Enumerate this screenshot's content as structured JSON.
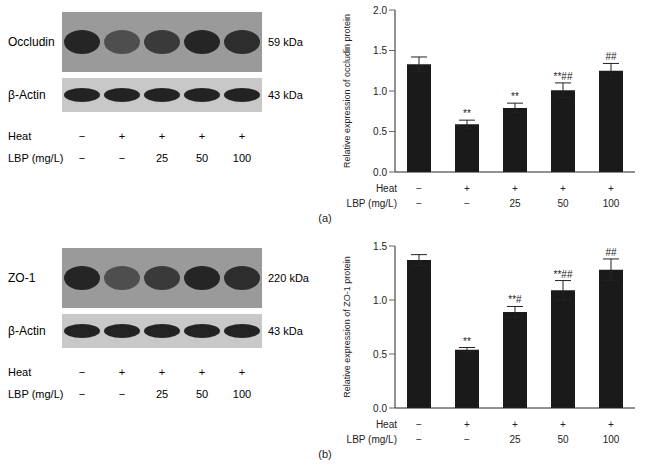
{
  "conditions": [
    {
      "label": "Heat",
      "values": [
        "−",
        "+",
        "+",
        "+",
        "+"
      ]
    },
    {
      "label": "LBP (mg/L)",
      "values": [
        "−",
        "−",
        "25",
        "50",
        "100"
      ]
    }
  ],
  "panels": [
    {
      "label": "(a)",
      "blot": [
        {
          "protein": "Occludin",
          "size": "59 kDa"
        },
        {
          "protein": "β-Actin",
          "size": "43 kDa"
        }
      ]
    },
    {
      "label": "(b)",
      "blot": [
        {
          "protein": "ZO-1",
          "size": "220 kDa"
        },
        {
          "protein": "β-Actin",
          "size": "43 kDa"
        }
      ]
    }
  ],
  "chart_data": [
    {
      "type": "bar",
      "y_label": "Relative expression of occludin protein",
      "values": [
        1.33,
        0.59,
        0.79,
        1.01,
        1.25
      ],
      "errors": [
        0.09,
        0.05,
        0.06,
        0.09,
        0.09
      ],
      "significance": [
        null,
        "**",
        "**",
        "**##",
        "##"
      ],
      "color": "#1a1a1a",
      "ylim": [
        0,
        2
      ],
      "yticks": [
        {
          "value": 0,
          "label": "0.0"
        },
        {
          "value": 0.5,
          "label": "0.5"
        },
        {
          "value": 1,
          "label": "1.0"
        },
        {
          "value": 1.5,
          "label": "1.5"
        },
        {
          "value": 2,
          "label": "2.0"
        }
      ]
    },
    {
      "type": "bar",
      "y_label": "Relative expression of ZO-1 protein",
      "values": [
        1.37,
        0.54,
        0.89,
        1.09,
        1.28
      ],
      "errors": [
        0.05,
        0.02,
        0.05,
        0.09,
        0.1
      ],
      "significance": [
        null,
        "**",
        "**#",
        "**##",
        "##"
      ],
      "color": "#1a1a1a",
      "ylim": [
        0,
        1.5
      ],
      "yticks": [
        {
          "value": 0,
          "label": "0.0"
        },
        {
          "value": 0.5,
          "label": "0.5"
        },
        {
          "value": 1,
          "label": "1.0"
        },
        {
          "value": 1.5,
          "label": "1.5"
        }
      ]
    }
  ]
}
